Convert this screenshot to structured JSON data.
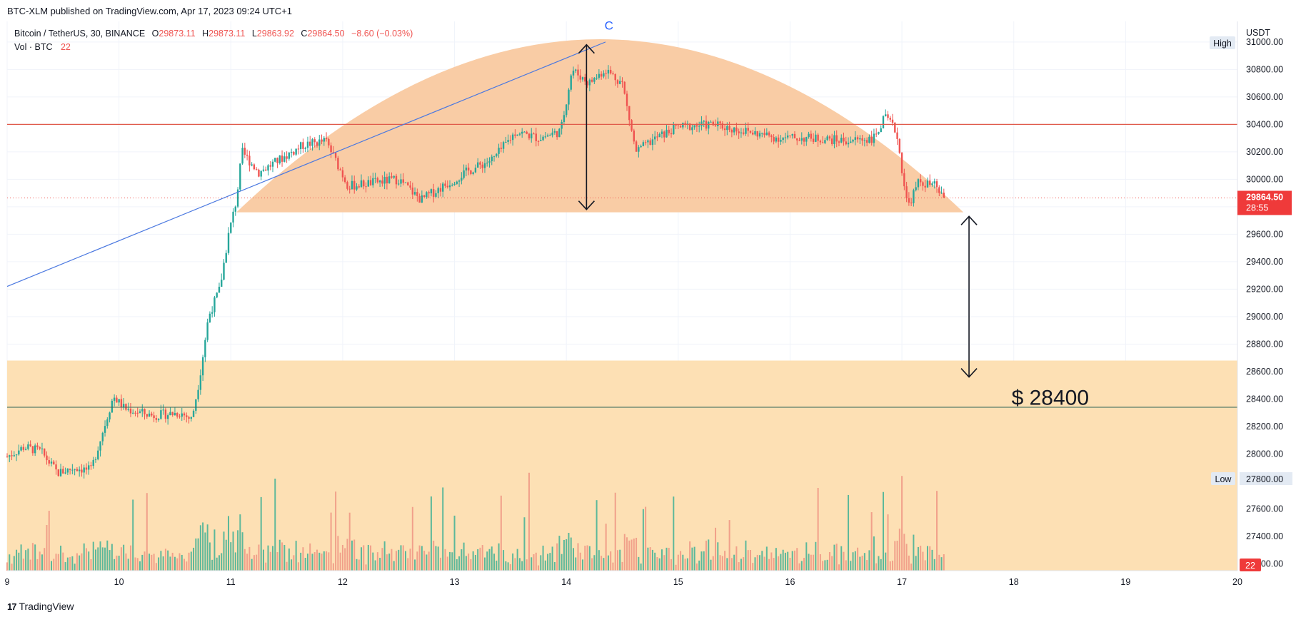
{
  "header": {
    "published": "BTC-XLM published on TradingView.com, Apr 17, 2023 09:24 UTC+1"
  },
  "legend": {
    "symbol": "Bitcoin / TetherUS, 30, BINANCE",
    "o_label": "O",
    "o_value": "29873.11",
    "h_label": "H",
    "h_value": "29873.11",
    "l_label": "L",
    "l_value": "29863.92",
    "c_label": "C",
    "c_value": "29864.50",
    "change": "−8.60 (−0.03%)",
    "vol_label": "Vol · BTC",
    "vol_value": "22"
  },
  "footer": {
    "brand": "TradingView",
    "logo_mark": "17"
  },
  "annotations": {
    "wave_label": "C",
    "target_text": "$ 28400",
    "high_badge": "High",
    "low_badge": "Low",
    "low_value": "27800.00",
    "last_price": "29864.50",
    "countdown": "28:55",
    "volume_badge": "22",
    "currency": "USDT"
  },
  "colors": {
    "up": "#26a69a",
    "down": "#ef5350",
    "arc_fill": "#f7b682",
    "zone_fill": "#fde0b4",
    "resistance": "#e05a4a",
    "support": "#3a6b5c",
    "trendline": "#4a78e0",
    "label_blue": "#2962ff"
  },
  "chart_data": {
    "type": "candlestick",
    "symbol": "BTCUSDT",
    "timeframe": "30",
    "exchange": "BINANCE",
    "x_tick_labels": [
      "9",
      "10",
      "11",
      "12",
      "13",
      "14",
      "15",
      "16",
      "17",
      "18",
      "19",
      "20"
    ],
    "y_tick_labels": [
      "31000.00",
      "30800.00",
      "30600.00",
      "30400.00",
      "30200.00",
      "30000.00",
      "29800.00",
      "29600.00",
      "29400.00",
      "29200.00",
      "29000.00",
      "28800.00",
      "28600.00",
      "28400.00",
      "28200.00",
      "28000.00",
      "27800.00",
      "27600.00",
      "27400.00",
      "27200.00"
    ],
    "y_range": [
      27150,
      31150
    ],
    "x_range_days": [
      9,
      20
    ],
    "close_path": [
      {
        "d": 9.0,
        "p": 27980
      },
      {
        "d": 9.15,
        "p": 28050
      },
      {
        "d": 9.3,
        "p": 28020
      },
      {
        "d": 9.45,
        "p": 27860
      },
      {
        "d": 9.6,
        "p": 27900
      },
      {
        "d": 9.75,
        "p": 27880
      },
      {
        "d": 9.85,
        "p": 28150
      },
      {
        "d": 9.95,
        "p": 28420
      },
      {
        "d": 10.05,
        "p": 28330
      },
      {
        "d": 10.3,
        "p": 28280
      },
      {
        "d": 10.55,
        "p": 28300
      },
      {
        "d": 10.65,
        "p": 28250
      },
      {
        "d": 10.72,
        "p": 28550
      },
      {
        "d": 10.8,
        "p": 29000
      },
      {
        "d": 10.9,
        "p": 29200
      },
      {
        "d": 10.98,
        "p": 29600
      },
      {
        "d": 11.05,
        "p": 29850
      },
      {
        "d": 11.1,
        "p": 30200
      },
      {
        "d": 11.25,
        "p": 30050
      },
      {
        "d": 11.45,
        "p": 30150
      },
      {
        "d": 11.65,
        "p": 30250
      },
      {
        "d": 11.85,
        "p": 30280
      },
      {
        "d": 12.05,
        "p": 29950
      },
      {
        "d": 12.3,
        "p": 29980
      },
      {
        "d": 12.5,
        "p": 30000
      },
      {
        "d": 12.7,
        "p": 29850
      },
      {
        "d": 12.9,
        "p": 29950
      },
      {
        "d": 13.1,
        "p": 30050
      },
      {
        "d": 13.35,
        "p": 30150
      },
      {
        "d": 13.55,
        "p": 30350
      },
      {
        "d": 13.75,
        "p": 30300
      },
      {
        "d": 13.95,
        "p": 30350
      },
      {
        "d": 14.05,
        "p": 30800
      },
      {
        "d": 14.2,
        "p": 30700
      },
      {
        "d": 14.35,
        "p": 30800
      },
      {
        "d": 14.5,
        "p": 30700
      },
      {
        "d": 14.62,
        "p": 30200
      },
      {
        "d": 14.8,
        "p": 30300
      },
      {
        "d": 15.0,
        "p": 30380
      },
      {
        "d": 15.3,
        "p": 30400
      },
      {
        "d": 15.6,
        "p": 30350
      },
      {
        "d": 15.9,
        "p": 30300
      },
      {
        "d": 16.2,
        "p": 30300
      },
      {
        "d": 16.5,
        "p": 30280
      },
      {
        "d": 16.75,
        "p": 30300
      },
      {
        "d": 16.85,
        "p": 30450
      },
      {
        "d": 16.95,
        "p": 30350
      },
      {
        "d": 17.05,
        "p": 29800
      },
      {
        "d": 17.15,
        "p": 29980
      },
      {
        "d": 17.3,
        "p": 29950
      },
      {
        "d": 17.38,
        "p": 29865
      }
    ],
    "levels": {
      "resistance": 30400,
      "support": 28340,
      "current": 29864.5,
      "target": 28400
    },
    "zones": {
      "lower_zone_top": 28680
    },
    "arc": {
      "start_day": 11.05,
      "end_day": 17.55,
      "base_price": 29760,
      "peak_price": 31020
    },
    "trendline": {
      "from": {
        "d": 9.0,
        "p": 29220
      },
      "to": {
        "d": 14.35,
        "p": 31000
      }
    },
    "measure_arrows": [
      {
        "day": 14.18,
        "from": 30980,
        "to": 29780
      },
      {
        "day": 17.6,
        "from": 29730,
        "to": 28560
      }
    ]
  }
}
